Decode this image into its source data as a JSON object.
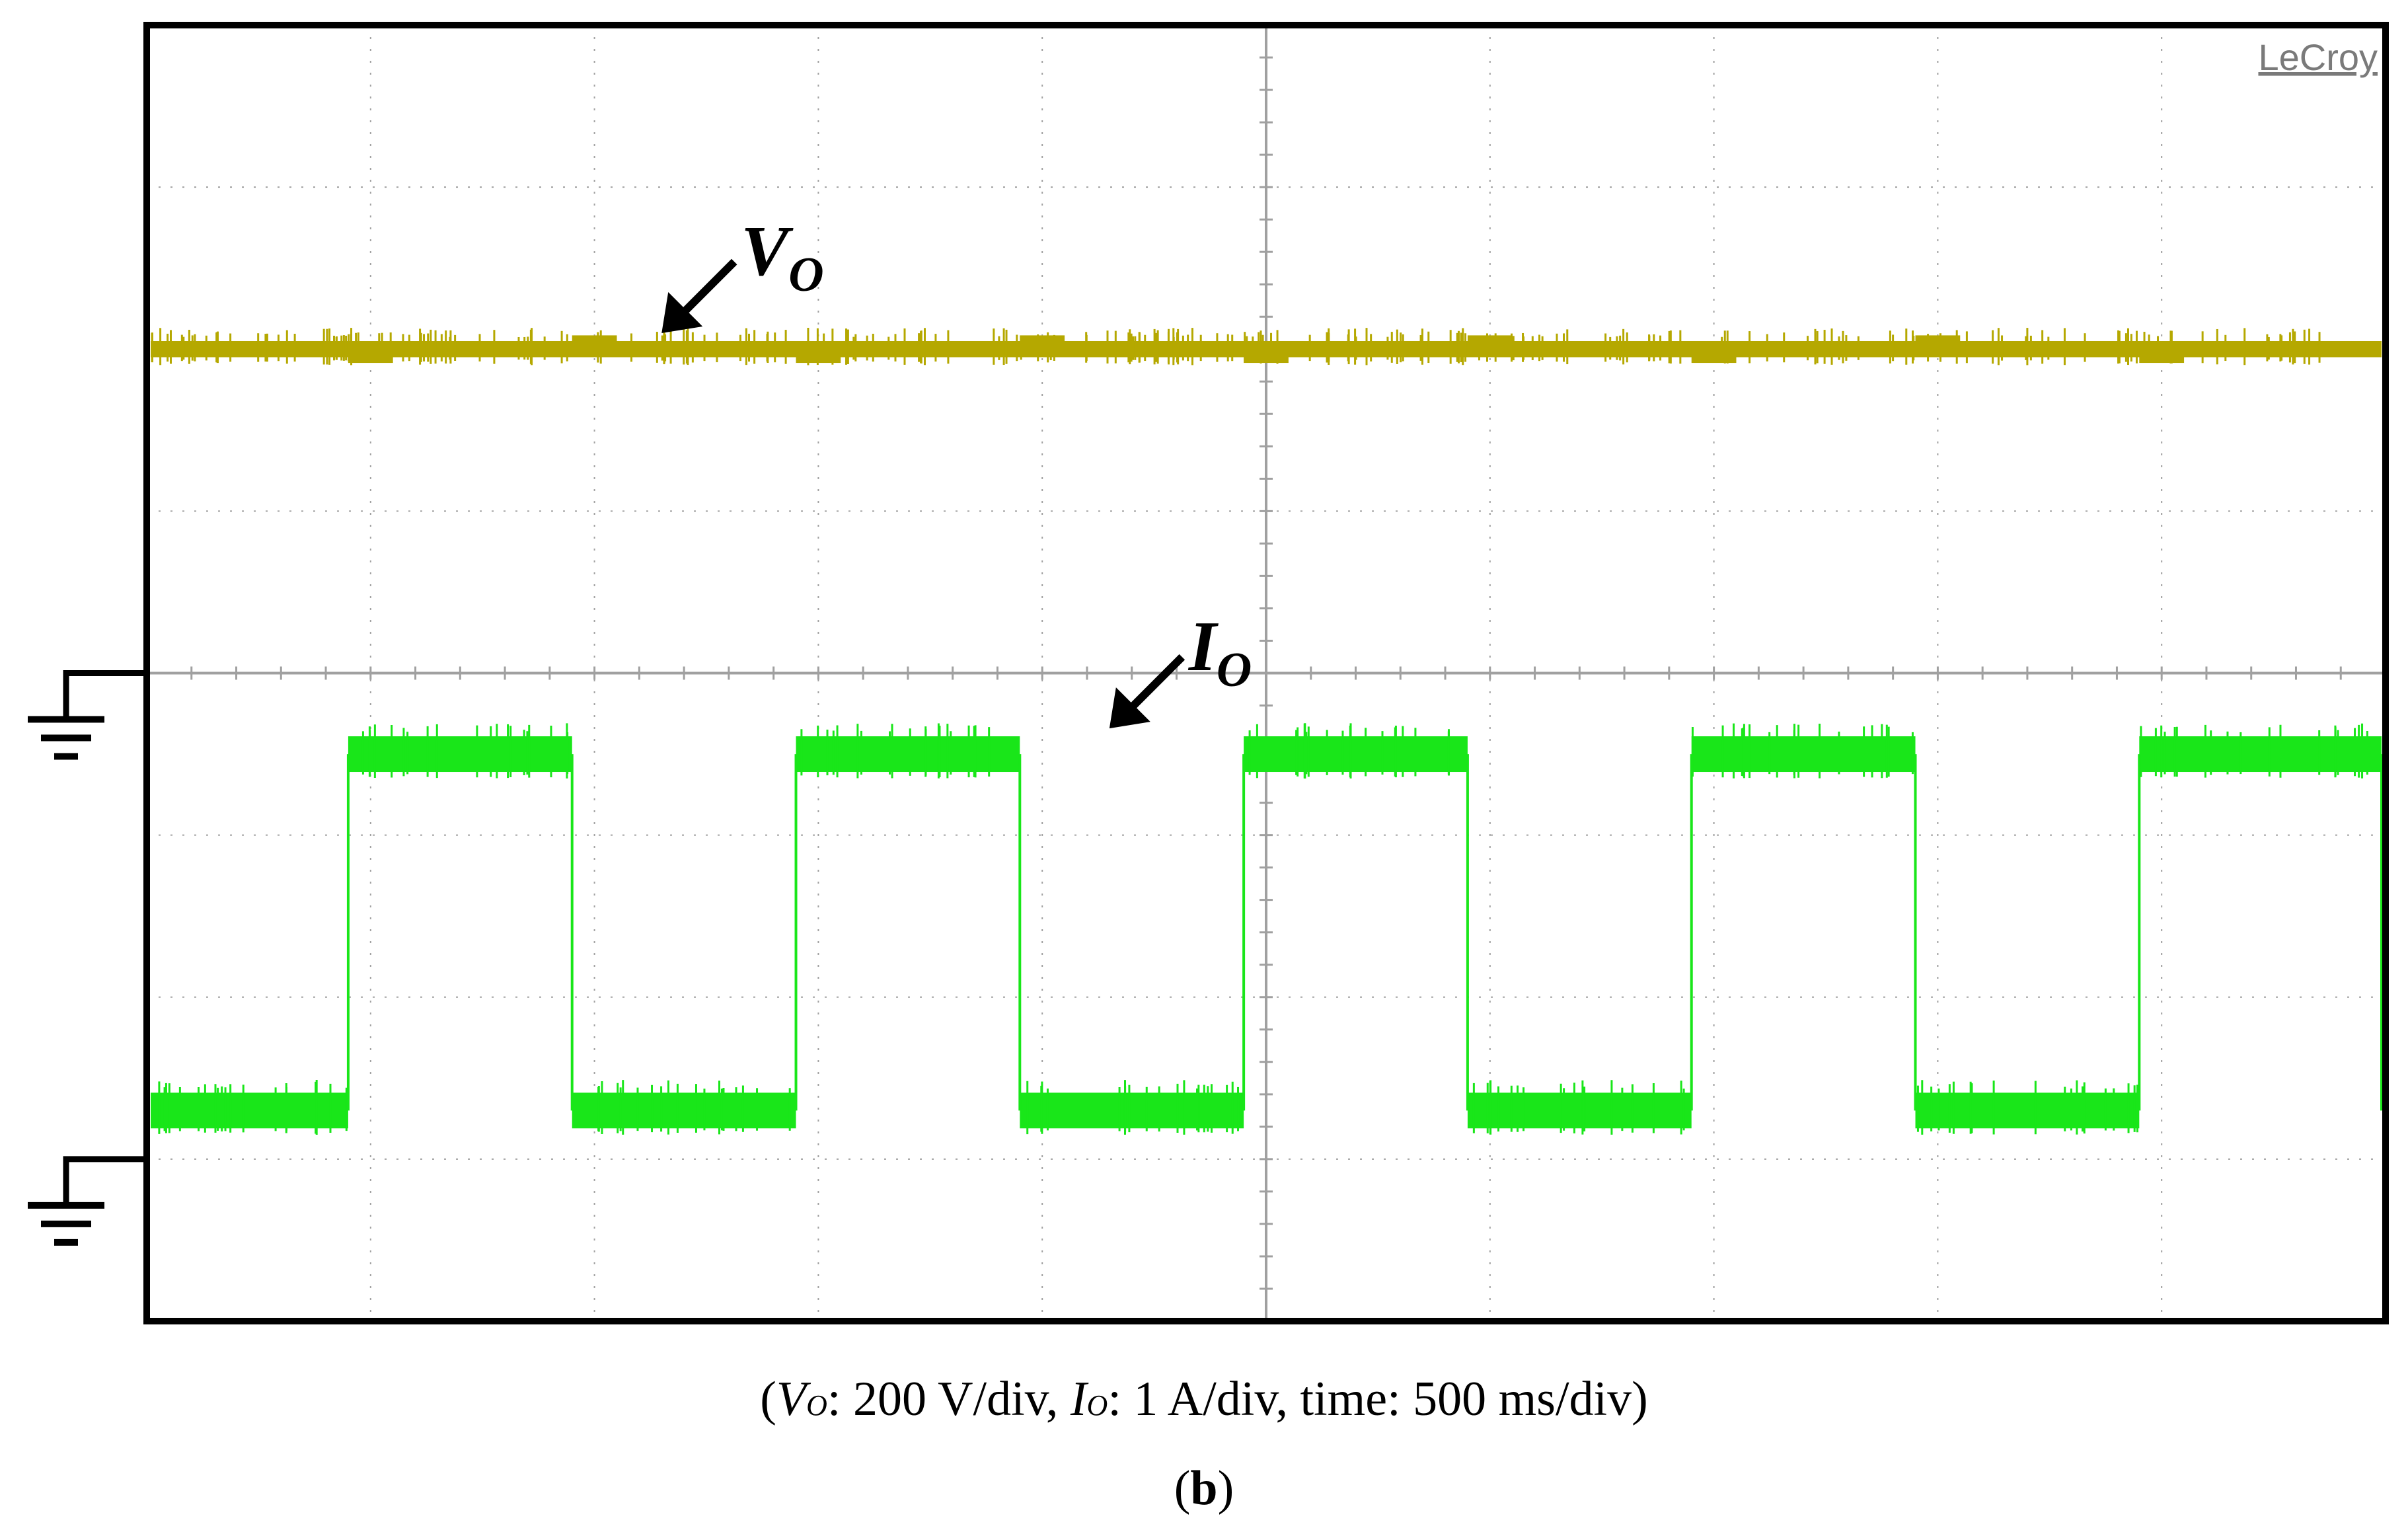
{
  "brand": "LeCroy",
  "colors": {
    "background": "#ffffff",
    "frame": "#000000",
    "grid": "#a0a0a0",
    "vo_trace": "#b5a800",
    "io_trace": "#19e619",
    "arrow": "#000000"
  },
  "caption": {
    "open": "(",
    "vo_label": "V",
    "vo_sub": "O",
    "vo_rest": ": 200 V/div, ",
    "io_label": "I",
    "io_sub": "O",
    "io_rest": ": 1 A/div, time: 500 ms/div)",
    "panel_open": "(",
    "panel": "b",
    "panel_close": ")"
  },
  "chart_data": {
    "type": "line",
    "title": "",
    "time_per_div": "500 ms/div",
    "x_divisions": 10,
    "y_divisions": 8,
    "xlim_div": [
      0,
      10
    ],
    "ylim_div": [
      -4,
      4
    ],
    "grid": true,
    "series": [
      {
        "name": "VO",
        "label_main": "V",
        "label_sub": "O",
        "scale": "200 V/div",
        "waveform": "dc",
        "ground_level_div": 0,
        "level_div": 2.0,
        "noise_band_div": 0.1
      },
      {
        "name": "IO",
        "label_main": "I",
        "label_sub": "O",
        "scale": "1 A/div",
        "waveform": "square",
        "ground_level_div": -3.0,
        "low_level_div": -2.7,
        "high_level_div": -0.5,
        "period_div": 2.0,
        "rising_edges_div": [
          0.9,
          2.9,
          4.9,
          6.9,
          8.9
        ],
        "falling_edges_div": [
          1.9,
          3.9,
          5.9,
          7.9
        ]
      }
    ],
    "annotations": [
      {
        "text": "VO",
        "target": "VO",
        "at_div": 2.3
      },
      {
        "text": "IO",
        "target": "IO",
        "at_div": 4.3
      }
    ]
  }
}
